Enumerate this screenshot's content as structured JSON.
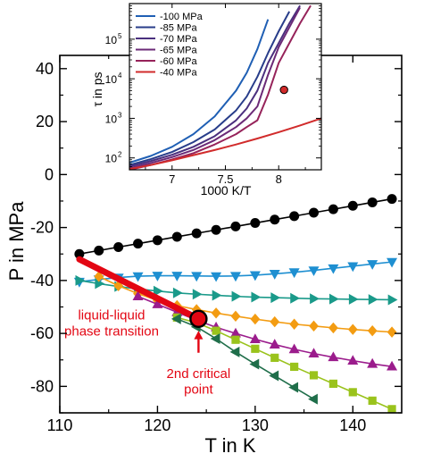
{
  "chart_data": [
    {
      "type": "scatter",
      "xlabel": "T in K",
      "ylabel": "P in MPa",
      "xlim": [
        110,
        145
      ],
      "ylim": [
        -90,
        45
      ],
      "xticks": [
        110,
        120,
        130,
        140
      ],
      "yticks": [
        -80,
        -60,
        -40,
        -20,
        0,
        20,
        40
      ],
      "grid": false,
      "series": [
        {
          "marker": "circle",
          "color": "#000000",
          "x": [
            112,
            114,
            116,
            118,
            120,
            122,
            124,
            126,
            128,
            130,
            132,
            134,
            136,
            138,
            140,
            142,
            144
          ],
          "y": [
            -30.0,
            -28.7,
            -27.4,
            -26.1,
            -24.8,
            -23.5,
            -22.2,
            -20.9,
            -19.6,
            -18.3,
            -17.0,
            -15.7,
            -14.4,
            -13.1,
            -11.8,
            -10.5,
            -9.2
          ]
        },
        {
          "marker": "triangle-down",
          "color": "#1e8fd1",
          "x": [
            112,
            114,
            116,
            118,
            120,
            122,
            124,
            126,
            128,
            130,
            132,
            134,
            136,
            138,
            140,
            142,
            144
          ],
          "y": [
            -40.5,
            -39.6,
            -38.9,
            -38.4,
            -38.2,
            -38.2,
            -38.3,
            -38.4,
            -38.3,
            -38.0,
            -37.5,
            -36.9,
            -36.2,
            -35.4,
            -34.6,
            -33.8,
            -33.0
          ]
        },
        {
          "marker": "triangle-right",
          "color": "#1a9a8a",
          "x": [
            112,
            114,
            116,
            118,
            120,
            122,
            124,
            126,
            128,
            130,
            132,
            134,
            136,
            138,
            140,
            142,
            144
          ],
          "y": [
            -40.0,
            -41.2,
            -42.3,
            -43.2,
            -44.0,
            -44.7,
            -45.2,
            -45.6,
            -46.0,
            -46.3,
            -46.5,
            -46.7,
            -46.9,
            -47.0,
            -47.1,
            -47.2,
            -47.3
          ]
        },
        {
          "marker": "diamond",
          "color": "#f39c12",
          "x": [
            114,
            116,
            118,
            120,
            122,
            124,
            126,
            128,
            130,
            132,
            134,
            136,
            138,
            140,
            142,
            144
          ],
          "y": [
            -38.5,
            -42.0,
            -45.0,
            -47.5,
            -49.5,
            -51.0,
            -52.3,
            -53.5,
            -54.6,
            -55.6,
            -56.5,
            -57.2,
            -57.9,
            -58.5,
            -59.0,
            -59.5
          ]
        },
        {
          "marker": "triangle-up",
          "color": "#9b1c8c",
          "x": [
            118,
            120,
            122,
            124,
            126,
            128,
            130,
            132,
            134,
            136,
            138,
            140,
            142,
            144
          ],
          "y": [
            -46.0,
            -49.0,
            -52.0,
            -55.0,
            -57.7,
            -60.0,
            -62.2,
            -64.2,
            -66.0,
            -67.6,
            -69.0,
            -70.3,
            -71.5,
            -72.5
          ]
        },
        {
          "marker": "square",
          "color": "#9ac31c",
          "x": [
            122,
            124,
            126,
            128,
            130,
            132,
            134,
            136,
            138,
            140,
            142,
            144
          ],
          "y": [
            -54.0,
            -56.0,
            -59.0,
            -62.4,
            -65.8,
            -69.2,
            -72.6,
            -75.8,
            -79.0,
            -82.2,
            -85.4,
            -88.6
          ]
        },
        {
          "marker": "triangle-left",
          "color": "#1f6e4a",
          "x": [
            122,
            124,
            126,
            128,
            130,
            132,
            134,
            136
          ],
          "y": [
            -54.5,
            -57.5,
            -62.0,
            -67.0,
            -71.6,
            -76.0,
            -80.4,
            -84.8
          ]
        }
      ],
      "transition_line": {
        "color": "#e30613",
        "x": [
          112,
          124.2
        ],
        "y": [
          -32,
          -54.5
        ]
      },
      "critical_point": {
        "x": 124.2,
        "y": -54.5
      },
      "annotations": [
        {
          "text": "liquid-liquid",
          "x": 115.3,
          "y": -54.8
        },
        {
          "text": "phase transition",
          "x": 115.3,
          "y": -60.8
        },
        {
          "text": "2nd critical",
          "x": 124.2,
          "y": -76.8
        },
        {
          "text": "point",
          "x": 124.2,
          "y": -82.8
        }
      ]
    },
    {
      "type": "line",
      "xlabel": "1000 K/T",
      "ylabel": "τ in ps",
      "xlim": [
        6.6,
        8.4
      ],
      "ylim_log10": [
        1.7,
        5.9
      ],
      "yscale": "log",
      "xticks": [
        7,
        7.5,
        8
      ],
      "yticks": [
        {
          "base": "10",
          "exp": "2",
          "value": 2
        },
        {
          "base": "10",
          "exp": "3",
          "value": 3
        },
        {
          "base": "10",
          "exp": "4",
          "value": 4
        },
        {
          "base": "10",
          "exp": "5",
          "value": 5
        }
      ],
      "legend_position": "top-left",
      "series": [
        {
          "name": "-100 MPa",
          "color": "#1f5fb4",
          "x": [
            6.6,
            6.8,
            7.0,
            7.2,
            7.4,
            7.6,
            7.7,
            7.8,
            7.9
          ],
          "log10y": [
            1.88,
            2.05,
            2.28,
            2.6,
            3.05,
            3.7,
            4.15,
            4.75,
            5.5
          ]
        },
        {
          "name": "-85 MPa",
          "color": "#283d8a",
          "x": [
            6.6,
            6.8,
            7.0,
            7.2,
            7.4,
            7.6,
            7.7,
            7.8,
            7.9,
            8.0,
            8.1
          ],
          "log10y": [
            1.82,
            1.97,
            2.15,
            2.4,
            2.72,
            3.2,
            3.55,
            4.05,
            4.65,
            5.2,
            5.7
          ]
        },
        {
          "name": "-70 MPa",
          "color": "#4a2f7e",
          "x": [
            6.6,
            6.8,
            7.0,
            7.2,
            7.4,
            7.6,
            7.7,
            7.8,
            7.9,
            8.0,
            8.1,
            8.2
          ],
          "log10y": [
            1.78,
            1.92,
            2.08,
            2.28,
            2.55,
            2.95,
            3.25,
            3.7,
            4.4,
            4.9,
            5.4,
            5.85
          ]
        },
        {
          "name": "-65 MPa",
          "color": "#6b2a77",
          "x": [
            6.6,
            6.8,
            7.0,
            7.2,
            7.4,
            7.6,
            7.7,
            7.8,
            7.9,
            8.0,
            8.1,
            8.2
          ],
          "log10y": [
            1.74,
            1.87,
            2.02,
            2.2,
            2.45,
            2.78,
            3.0,
            3.3,
            4.1,
            4.8,
            5.3,
            5.8
          ]
        },
        {
          "name": "-60 MPa",
          "color": "#96235a",
          "x": [
            6.6,
            6.8,
            7.0,
            7.2,
            7.4,
            7.6,
            7.7,
            7.8,
            7.9,
            8.0,
            8.1,
            8.2,
            8.3
          ],
          "log10y": [
            1.7,
            1.82,
            1.96,
            2.12,
            2.34,
            2.6,
            2.78,
            2.95,
            3.6,
            4.4,
            4.9,
            5.4,
            5.85
          ]
        },
        {
          "name": "-40 MPa",
          "color": "#d12b2b",
          "x": [
            6.6,
            6.8,
            7.0,
            7.2,
            7.4,
            7.6,
            7.8,
            8.0,
            8.2,
            8.4
          ],
          "log10y": [
            1.72,
            1.82,
            1.94,
            2.07,
            2.2,
            2.34,
            2.49,
            2.65,
            2.82,
            3.0
          ]
        }
      ],
      "marker": {
        "x": 8.05,
        "log10y": 3.72,
        "color": "#d12b2b"
      }
    }
  ]
}
